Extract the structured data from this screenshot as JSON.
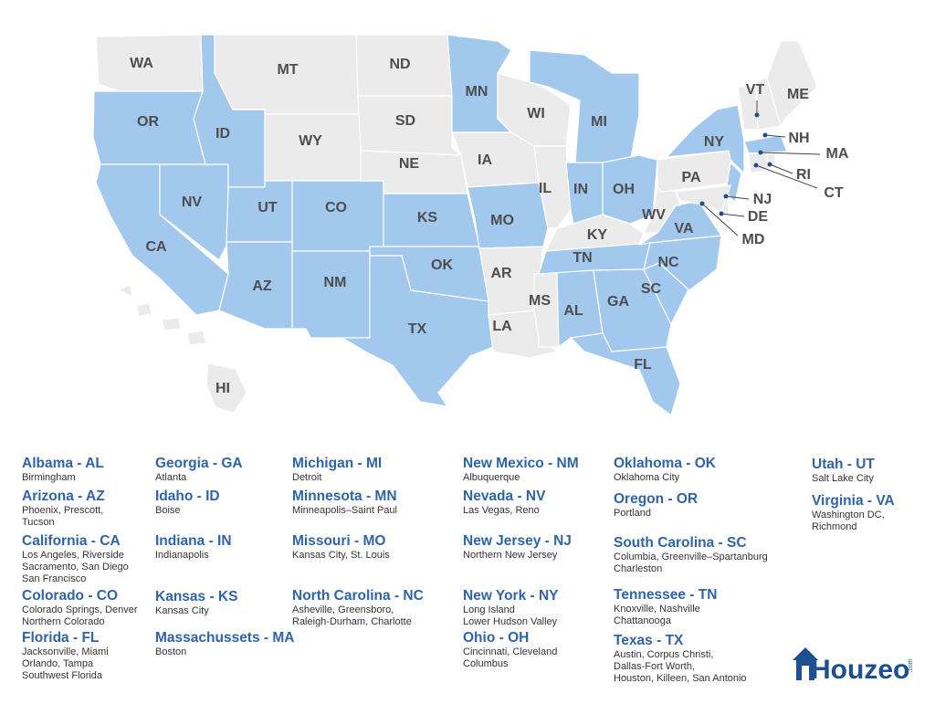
{
  "map": {
    "states": [
      {
        "abbr": "WA",
        "highlighted": false
      },
      {
        "abbr": "OR",
        "highlighted": true
      },
      {
        "abbr": "CA",
        "highlighted": true
      },
      {
        "abbr": "NV",
        "highlighted": true
      },
      {
        "abbr": "ID",
        "highlighted": true
      },
      {
        "abbr": "MT",
        "highlighted": false
      },
      {
        "abbr": "WY",
        "highlighted": false
      },
      {
        "abbr": "UT",
        "highlighted": true
      },
      {
        "abbr": "CO",
        "highlighted": true
      },
      {
        "abbr": "AZ",
        "highlighted": true
      },
      {
        "abbr": "NM",
        "highlighted": true
      },
      {
        "abbr": "ND",
        "highlighted": false
      },
      {
        "abbr": "SD",
        "highlighted": false
      },
      {
        "abbr": "NE",
        "highlighted": false
      },
      {
        "abbr": "KS",
        "highlighted": true
      },
      {
        "abbr": "OK",
        "highlighted": true
      },
      {
        "abbr": "TX",
        "highlighted": true
      },
      {
        "abbr": "MN",
        "highlighted": true
      },
      {
        "abbr": "IA",
        "highlighted": false
      },
      {
        "abbr": "MO",
        "highlighted": true
      },
      {
        "abbr": "AR",
        "highlighted": false
      },
      {
        "abbr": "LA",
        "highlighted": false
      },
      {
        "abbr": "MS",
        "highlighted": false
      },
      {
        "abbr": "AL",
        "highlighted": true
      },
      {
        "abbr": "WI",
        "highlighted": false
      },
      {
        "abbr": "IL",
        "highlighted": false
      },
      {
        "abbr": "IN",
        "highlighted": true
      },
      {
        "abbr": "MI",
        "highlighted": true
      },
      {
        "abbr": "OH",
        "highlighted": true
      },
      {
        "abbr": "KY",
        "highlighted": false
      },
      {
        "abbr": "TN",
        "highlighted": true
      },
      {
        "abbr": "GA",
        "highlighted": true
      },
      {
        "abbr": "FL",
        "highlighted": true
      },
      {
        "abbr": "SC",
        "highlighted": true
      },
      {
        "abbr": "NC",
        "highlighted": true
      },
      {
        "abbr": "VA",
        "highlighted": true
      },
      {
        "abbr": "WV",
        "highlighted": false
      },
      {
        "abbr": "PA",
        "highlighted": false
      },
      {
        "abbr": "NY",
        "highlighted": true
      },
      {
        "abbr": "VT",
        "highlighted": false
      },
      {
        "abbr": "NH",
        "highlighted": false
      },
      {
        "abbr": "ME",
        "highlighted": false
      },
      {
        "abbr": "MA",
        "highlighted": true
      },
      {
        "abbr": "CT",
        "highlighted": false
      },
      {
        "abbr": "RI",
        "highlighted": false
      },
      {
        "abbr": "NJ",
        "highlighted": true
      },
      {
        "abbr": "DE",
        "highlighted": false
      },
      {
        "abbr": "MD",
        "highlighted": false
      },
      {
        "abbr": "HI",
        "highlighted": false
      }
    ]
  },
  "legend": {
    "columns": [
      [
        {
          "title": "Albama - AL",
          "lines": [
            "Birmingham"
          ]
        },
        {
          "title": "Arizona - AZ",
          "lines": [
            "Phoenix, Prescott,",
            "Tucson"
          ]
        },
        {
          "title": "California - CA",
          "lines": [
            "Los Angeles, Riverside",
            "Sacramento, San Diego",
            "San Francisco"
          ]
        },
        {
          "title": "Colorado - CO",
          "lines": [
            "Colorado Springs, Denver",
            "Northern Colorado"
          ]
        },
        {
          "title": "Florida - FL",
          "lines": [
            "Jacksonville, Miami",
            "Orlando, Tampa",
            "Southwest Florida"
          ]
        }
      ],
      [
        {
          "title": "Georgia - GA",
          "lines": [
            "Atlanta"
          ]
        },
        {
          "title": "Idaho - ID",
          "lines": [
            "Boise"
          ]
        },
        {
          "title": "Indiana - IN",
          "lines": [
            "Indianapolis"
          ]
        },
        {
          "title": "Kansas - KS",
          "lines": [
            "Kansas City"
          ]
        },
        {
          "title": "Massachussets - MA",
          "lines": [
            "Boston"
          ]
        }
      ],
      [
        {
          "title": "Michigan - MI",
          "lines": [
            "Detroit"
          ]
        },
        {
          "title": "Minnesota - MN",
          "lines": [
            "Minneapolis–Saint Paul"
          ]
        },
        {
          "title": "Missouri - MO",
          "lines": [
            "Kansas City, St. Louis"
          ]
        },
        {
          "title": "North Carolina - NC",
          "lines": [
            "Asheville, Greensboro,",
            "Raleigh-Durham, Charlotte"
          ]
        }
      ],
      [
        {
          "title": "New Mexico - NM",
          "lines": [
            "Albuquerque"
          ]
        },
        {
          "title": "Nevada - NV",
          "lines": [
            "Las Vegas, Reno"
          ]
        },
        {
          "title": "New Jersey - NJ",
          "lines": [
            "Northern New Jersey"
          ]
        },
        {
          "title": "New York - NY",
          "lines": [
            "Long Island",
            "Lower Hudson Valley"
          ]
        },
        {
          "title": "Ohio - OH",
          "lines": [
            "Cincinnati, Cleveland",
            "Columbus"
          ]
        }
      ],
      [
        {
          "title": "Oklahoma - OK",
          "lines": [
            "Oklahoma City"
          ]
        },
        {
          "title": "Oregon - OR",
          "lines": [
            "Portland"
          ]
        },
        {
          "title": "South Carolina - SC",
          "lines": [
            "Columbia, Greenville–Spartanburg",
            "Charleston"
          ]
        },
        {
          "title": "Tennessee - TN",
          "lines": [
            "Knoxville, Nashville",
            "Chattanooga"
          ]
        },
        {
          "title": "Texas - TX",
          "lines": [
            "Austin, Corpus Christi,",
            "Dallas-Fort Worth,",
            "Houston, Killeen, San Antonio"
          ]
        }
      ],
      [
        {
          "title": "Utah - UT",
          "lines": [
            "Salt Lake City"
          ]
        },
        {
          "title": "Virginia - VA",
          "lines": [
            "Washington DC,",
            "Richmond"
          ]
        }
      ]
    ]
  },
  "logo": {
    "name": "Houzeo",
    "suffix": ".com"
  }
}
